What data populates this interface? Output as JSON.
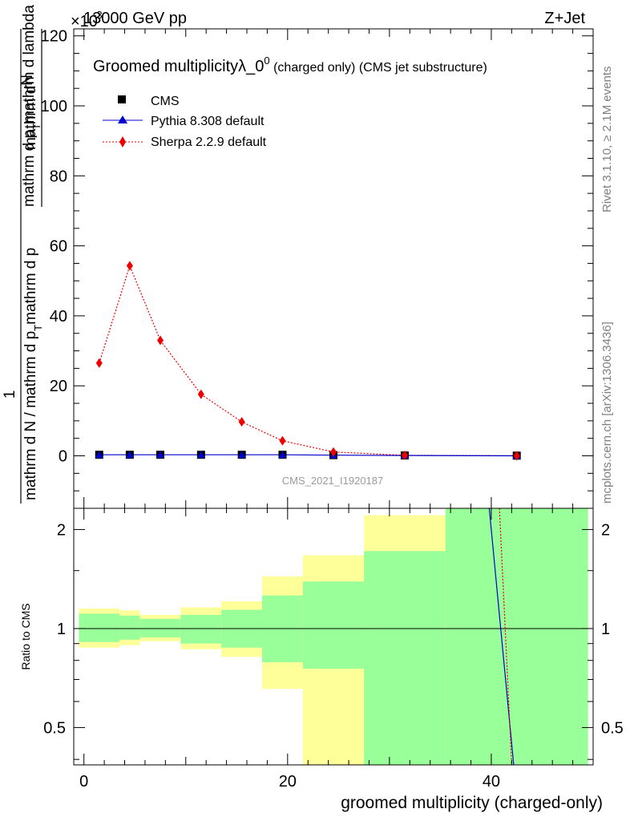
{
  "header": {
    "left": "13000 GeV pp",
    "right": "Z+Jet",
    "exponent_label": "×10",
    "exponent_power": "-3"
  },
  "side_labels": {
    "rivet": "Rivet 3.1.10, ≥ 2.1M events",
    "mcplots": "mcplots.cern.ch [arXiv:1306.3436]"
  },
  "watermark": "CMS_2021_I1920187",
  "colors": {
    "cms": "#000000",
    "pythia": "#0000cc",
    "sherpa": "#ee0000",
    "band_inner": "#99ff99",
    "band_outer": "#ffff99"
  },
  "chart_data": [
    {
      "type": "line",
      "title_main": "Groomed multiplicityλ_0",
      "title_sup": "0",
      "title_rest": " (charged only) (CMS jet substructure)",
      "ylabel_numer": "mathrm d",
      "ylabel_numer_N": "N",
      "ylabel_one": "1",
      "ylabel_denom_top": "mathrm d p",
      "ylabel_denom_top_sub": "T",
      "ylabel_denom_top_rest": "mathrm d lambda",
      "ylabel_denom_main": "mathrm d N / mathrm d p",
      "ylabel_denom_main_sub": "T",
      "ylabel_denom_main_rest": "mathrm d p",
      "xlim": [
        -1,
        50
      ],
      "ylim": [
        -15,
        122
      ],
      "y_ticks": [
        0,
        20,
        40,
        60,
        80,
        100,
        120
      ],
      "y_tick_labels": [
        "0",
        "20",
        "40",
        "60",
        "80",
        "100",
        "120"
      ],
      "legend_position": "top-left",
      "series": [
        {
          "name": "CMS",
          "marker": "square",
          "x": [
            1.5,
            4.5,
            7.5,
            11.5,
            15.5,
            19.5,
            24.5,
            31.5,
            42.5
          ],
          "values": [
            0.3,
            0.3,
            0.3,
            0.3,
            0.3,
            0.3,
            0.2,
            0.1,
            0.05
          ]
        },
        {
          "name": "Pythia 8.308 default",
          "marker": "triangle",
          "x": [
            1.5,
            4.5,
            7.5,
            11.5,
            15.5,
            19.5,
            24.5,
            31.5,
            42.5
          ],
          "values": [
            0.3,
            0.3,
            0.3,
            0.3,
            0.3,
            0.3,
            0.2,
            0.1,
            0.0
          ]
        },
        {
          "name": "Sherpa 2.2.9 default",
          "marker": "diamond",
          "x": [
            1.5,
            4.5,
            7.5,
            11.5,
            15.5,
            19.5,
            24.5,
            31.5,
            42.5
          ],
          "values": [
            26.5,
            54.3,
            33.0,
            17.6,
            9.7,
            4.3,
            1.1,
            0.15,
            0.02
          ]
        }
      ]
    },
    {
      "type": "line",
      "ylabel": "Ratio to CMS",
      "xlabel": "groomed multiplicity (charged-only)",
      "xlim": [
        -1,
        50
      ],
      "ylim": [
        0.385,
        2.32
      ],
      "x_ticks": [
        0,
        20,
        40
      ],
      "x_tick_labels": [
        "0",
        "20",
        "40"
      ],
      "y_ticks": [
        0.5,
        1,
        2
      ],
      "y_tick_labels": [
        "0.5",
        "1",
        "2"
      ],
      "bins": [
        {
          "lo": -0.5,
          "hi": 3.5,
          "inner": [
            0.91,
            1.11
          ],
          "outer": [
            0.875,
            1.15
          ]
        },
        {
          "lo": 3.5,
          "hi": 5.5,
          "inner": [
            0.925,
            1.095
          ],
          "outer": [
            0.89,
            1.135
          ]
        },
        {
          "lo": 5.5,
          "hi": 9.5,
          "inner": [
            0.94,
            1.07
          ],
          "outer": [
            0.915,
            1.1
          ]
        },
        {
          "lo": 9.5,
          "hi": 13.5,
          "inner": [
            0.9,
            1.1
          ],
          "outer": [
            0.865,
            1.16
          ]
        },
        {
          "lo": 13.5,
          "hi": 17.5,
          "inner": [
            0.875,
            1.14
          ],
          "outer": [
            0.82,
            1.21
          ]
        },
        {
          "lo": 17.5,
          "hi": 21.5,
          "inner": [
            0.79,
            1.26
          ],
          "outer": [
            0.655,
            1.44
          ]
        },
        {
          "lo": 21.5,
          "hi": 27.5,
          "inner": [
            0.755,
            1.39
          ],
          "outer": [
            0.385,
            1.67
          ]
        },
        {
          "lo": 27.5,
          "hi": 35.5,
          "inner": [
            0.385,
            1.72
          ],
          "outer": [
            0.385,
            2.21
          ]
        },
        {
          "lo": 35.5,
          "hi": 49.5,
          "inner": [
            0.385,
            2.32
          ],
          "outer": [
            0.385,
            2.32
          ]
        }
      ],
      "ref_line": 1,
      "ratio_lines": [
        {
          "name": "Pythia 8.308 default",
          "points": [
            [
              39.8,
              2.32
            ],
            [
              42.2,
              0.385
            ]
          ]
        },
        {
          "name": "Sherpa 2.2.9 default",
          "points": [
            [
              40.8,
              2.32
            ],
            [
              42.0,
              0.385
            ]
          ]
        }
      ]
    }
  ]
}
